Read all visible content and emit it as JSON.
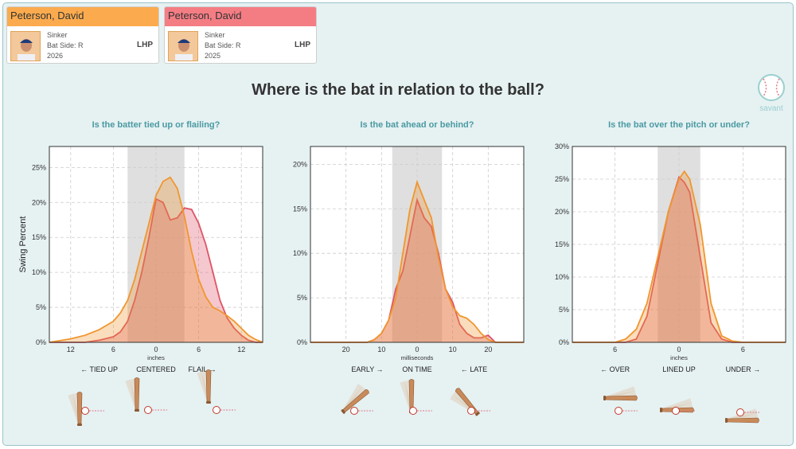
{
  "cards": [
    {
      "name": "Peterson, David",
      "pitch": "Sinker",
      "bat_side": "Bat Side: R",
      "year": "2026",
      "hand": "LHP",
      "color": "#fbab4e"
    },
    {
      "name": "Peterson, David",
      "pitch": "Sinker",
      "bat_side": "Bat Side: R",
      "year": "2025",
      "hand": "LHP",
      "color": "#f47d84"
    }
  ],
  "title": "Where is the bat in relation to the ball?",
  "logo_text": "savant",
  "colors": {
    "orange": "#f0962f",
    "red": "#dd5566",
    "shade": "#d9d9d9",
    "accent": "#4a9aa2"
  },
  "chart_data": [
    {
      "type": "area",
      "title": "Is the batter tied up or flailing?",
      "ylabel": "Swing Percent",
      "xlabel": "inches",
      "xlim": [
        -15,
        15
      ],
      "ylim": [
        0,
        28
      ],
      "x_reversed": false,
      "xticks": [
        -12,
        -6,
        0,
        6,
        12
      ],
      "xtick_labels": [
        "12",
        "6",
        "0",
        "6",
        "12"
      ],
      "yticks": [
        0,
        5,
        10,
        15,
        20,
        25
      ],
      "ytick_labels": [
        "0%",
        "5%",
        "10%",
        "15%",
        "20%",
        "25%"
      ],
      "shade": [
        -4,
        4
      ],
      "annotations": [
        "← TIED UP",
        "CENTERED",
        "FLAIL →"
      ],
      "annotation_x": [
        -8,
        0,
        6.5
      ],
      "series": [
        {
          "name": "2026",
          "x": [
            -15,
            -12,
            -10,
            -8,
            -6,
            -5,
            -4,
            -3,
            -2,
            -1,
            0,
            1,
            2,
            3,
            4,
            5,
            6,
            7,
            8,
            9,
            10,
            11,
            12,
            13,
            14,
            15
          ],
          "values": [
            0,
            0.5,
            1,
            1.8,
            3,
            4.2,
            6,
            9,
            13,
            17,
            21,
            23,
            23.6,
            22,
            18,
            13,
            9,
            6.5,
            5,
            4.5,
            3.8,
            3,
            2,
            1,
            0.4,
            0
          ]
        },
        {
          "name": "2025",
          "x": [
            -15,
            -12,
            -10,
            -8,
            -6,
            -5,
            -4,
            -3,
            -2,
            -1,
            0,
            1,
            2,
            3,
            4,
            5,
            6,
            7,
            8,
            9,
            10,
            11,
            12,
            13,
            14,
            15
          ],
          "values": [
            0,
            0,
            0,
            0.3,
            0.8,
            1.5,
            3,
            6,
            10,
            15,
            20.5,
            20,
            17.5,
            17.8,
            19.2,
            19,
            17,
            14,
            10,
            6,
            3.5,
            2,
            1,
            0.3,
            0,
            0
          ]
        }
      ]
    },
    {
      "type": "area",
      "title": "Is the bat ahead or behind?",
      "ylabel": "",
      "xlabel": "milliseconds",
      "xlim": [
        -30,
        30
      ],
      "ylim": [
        0,
        22
      ],
      "x_reversed": true,
      "xticks": [
        -20,
        -10,
        0,
        10,
        20
      ],
      "xtick_labels": [
        "20",
        "10",
        "0",
        "10",
        "20"
      ],
      "yticks": [
        0,
        5,
        10,
        15,
        20
      ],
      "ytick_labels": [
        "0%",
        "5%",
        "10%",
        "15%",
        "20%"
      ],
      "shade": [
        -7,
        7
      ],
      "annotations": [
        "← LATE",
        "ON TIME",
        "EARLY →"
      ],
      "annotation_x": [
        -16,
        0,
        14
      ],
      "series": [
        {
          "name": "2026",
          "x": [
            -30,
            -22,
            -20,
            -18,
            -16,
            -14,
            -12,
            -10,
            -8,
            -6,
            -4,
            -2,
            0,
            2,
            4,
            6,
            8,
            10,
            12,
            14,
            20,
            30
          ],
          "values": [
            0,
            0,
            0.3,
            1,
            2,
            2.7,
            3,
            4,
            6,
            9.5,
            14,
            16,
            18,
            15,
            10,
            5,
            2.5,
            1,
            0.3,
            0,
            0,
            0
          ]
        },
        {
          "name": "2025",
          "x": [
            -30,
            -22,
            -20,
            -18,
            -16,
            -14,
            -12,
            -10,
            -8,
            -6,
            -4,
            -2,
            0,
            2,
            4,
            6,
            8,
            10,
            12,
            14,
            20,
            30
          ],
          "values": [
            0,
            0,
            0.8,
            0.5,
            0.5,
            1,
            2,
            4.5,
            6,
            10,
            13,
            14,
            16,
            12,
            8,
            6,
            2.5,
            1,
            0.3,
            0,
            0,
            0
          ]
        }
      ]
    },
    {
      "type": "area",
      "title": "Is the bat over the pitch or under?",
      "ylabel": "",
      "xlabel": "inches",
      "xlim": [
        -10,
        10
      ],
      "ylim": [
        0,
        30
      ],
      "x_reversed": false,
      "xticks": [
        -6,
        0,
        6
      ],
      "xtick_labels": [
        "6",
        "0",
        "6"
      ],
      "yticks": [
        0,
        5,
        10,
        15,
        20,
        25,
        30
      ],
      "ytick_labels": [
        "0%",
        "5%",
        "10%",
        "15%",
        "20%",
        "25%",
        "30%"
      ],
      "shade": [
        -2,
        2
      ],
      "annotations": [
        "← OVER",
        "LINED UP",
        "UNDER →"
      ],
      "annotation_x": [
        -6,
        0,
        6
      ],
      "series": [
        {
          "name": "2026",
          "x": [
            -10,
            -6,
            -5,
            -4,
            -3,
            -2,
            -1,
            0,
            0.5,
            1,
            2,
            3,
            4,
            5,
            6,
            10
          ],
          "values": [
            0,
            0,
            0.5,
            2,
            6,
            13,
            20,
            25,
            26.2,
            25,
            18,
            6,
            1,
            0.2,
            0,
            0
          ]
        },
        {
          "name": "2025",
          "x": [
            -10,
            -6,
            -5,
            -4,
            -3,
            -2,
            -1,
            0,
            0.5,
            1,
            2,
            3,
            4,
            5,
            6,
            10
          ],
          "values": [
            0,
            0,
            0,
            0.5,
            4,
            12,
            20,
            25.3,
            24.5,
            23,
            13,
            3,
            0.5,
            0,
            0,
            0
          ]
        }
      ]
    }
  ]
}
